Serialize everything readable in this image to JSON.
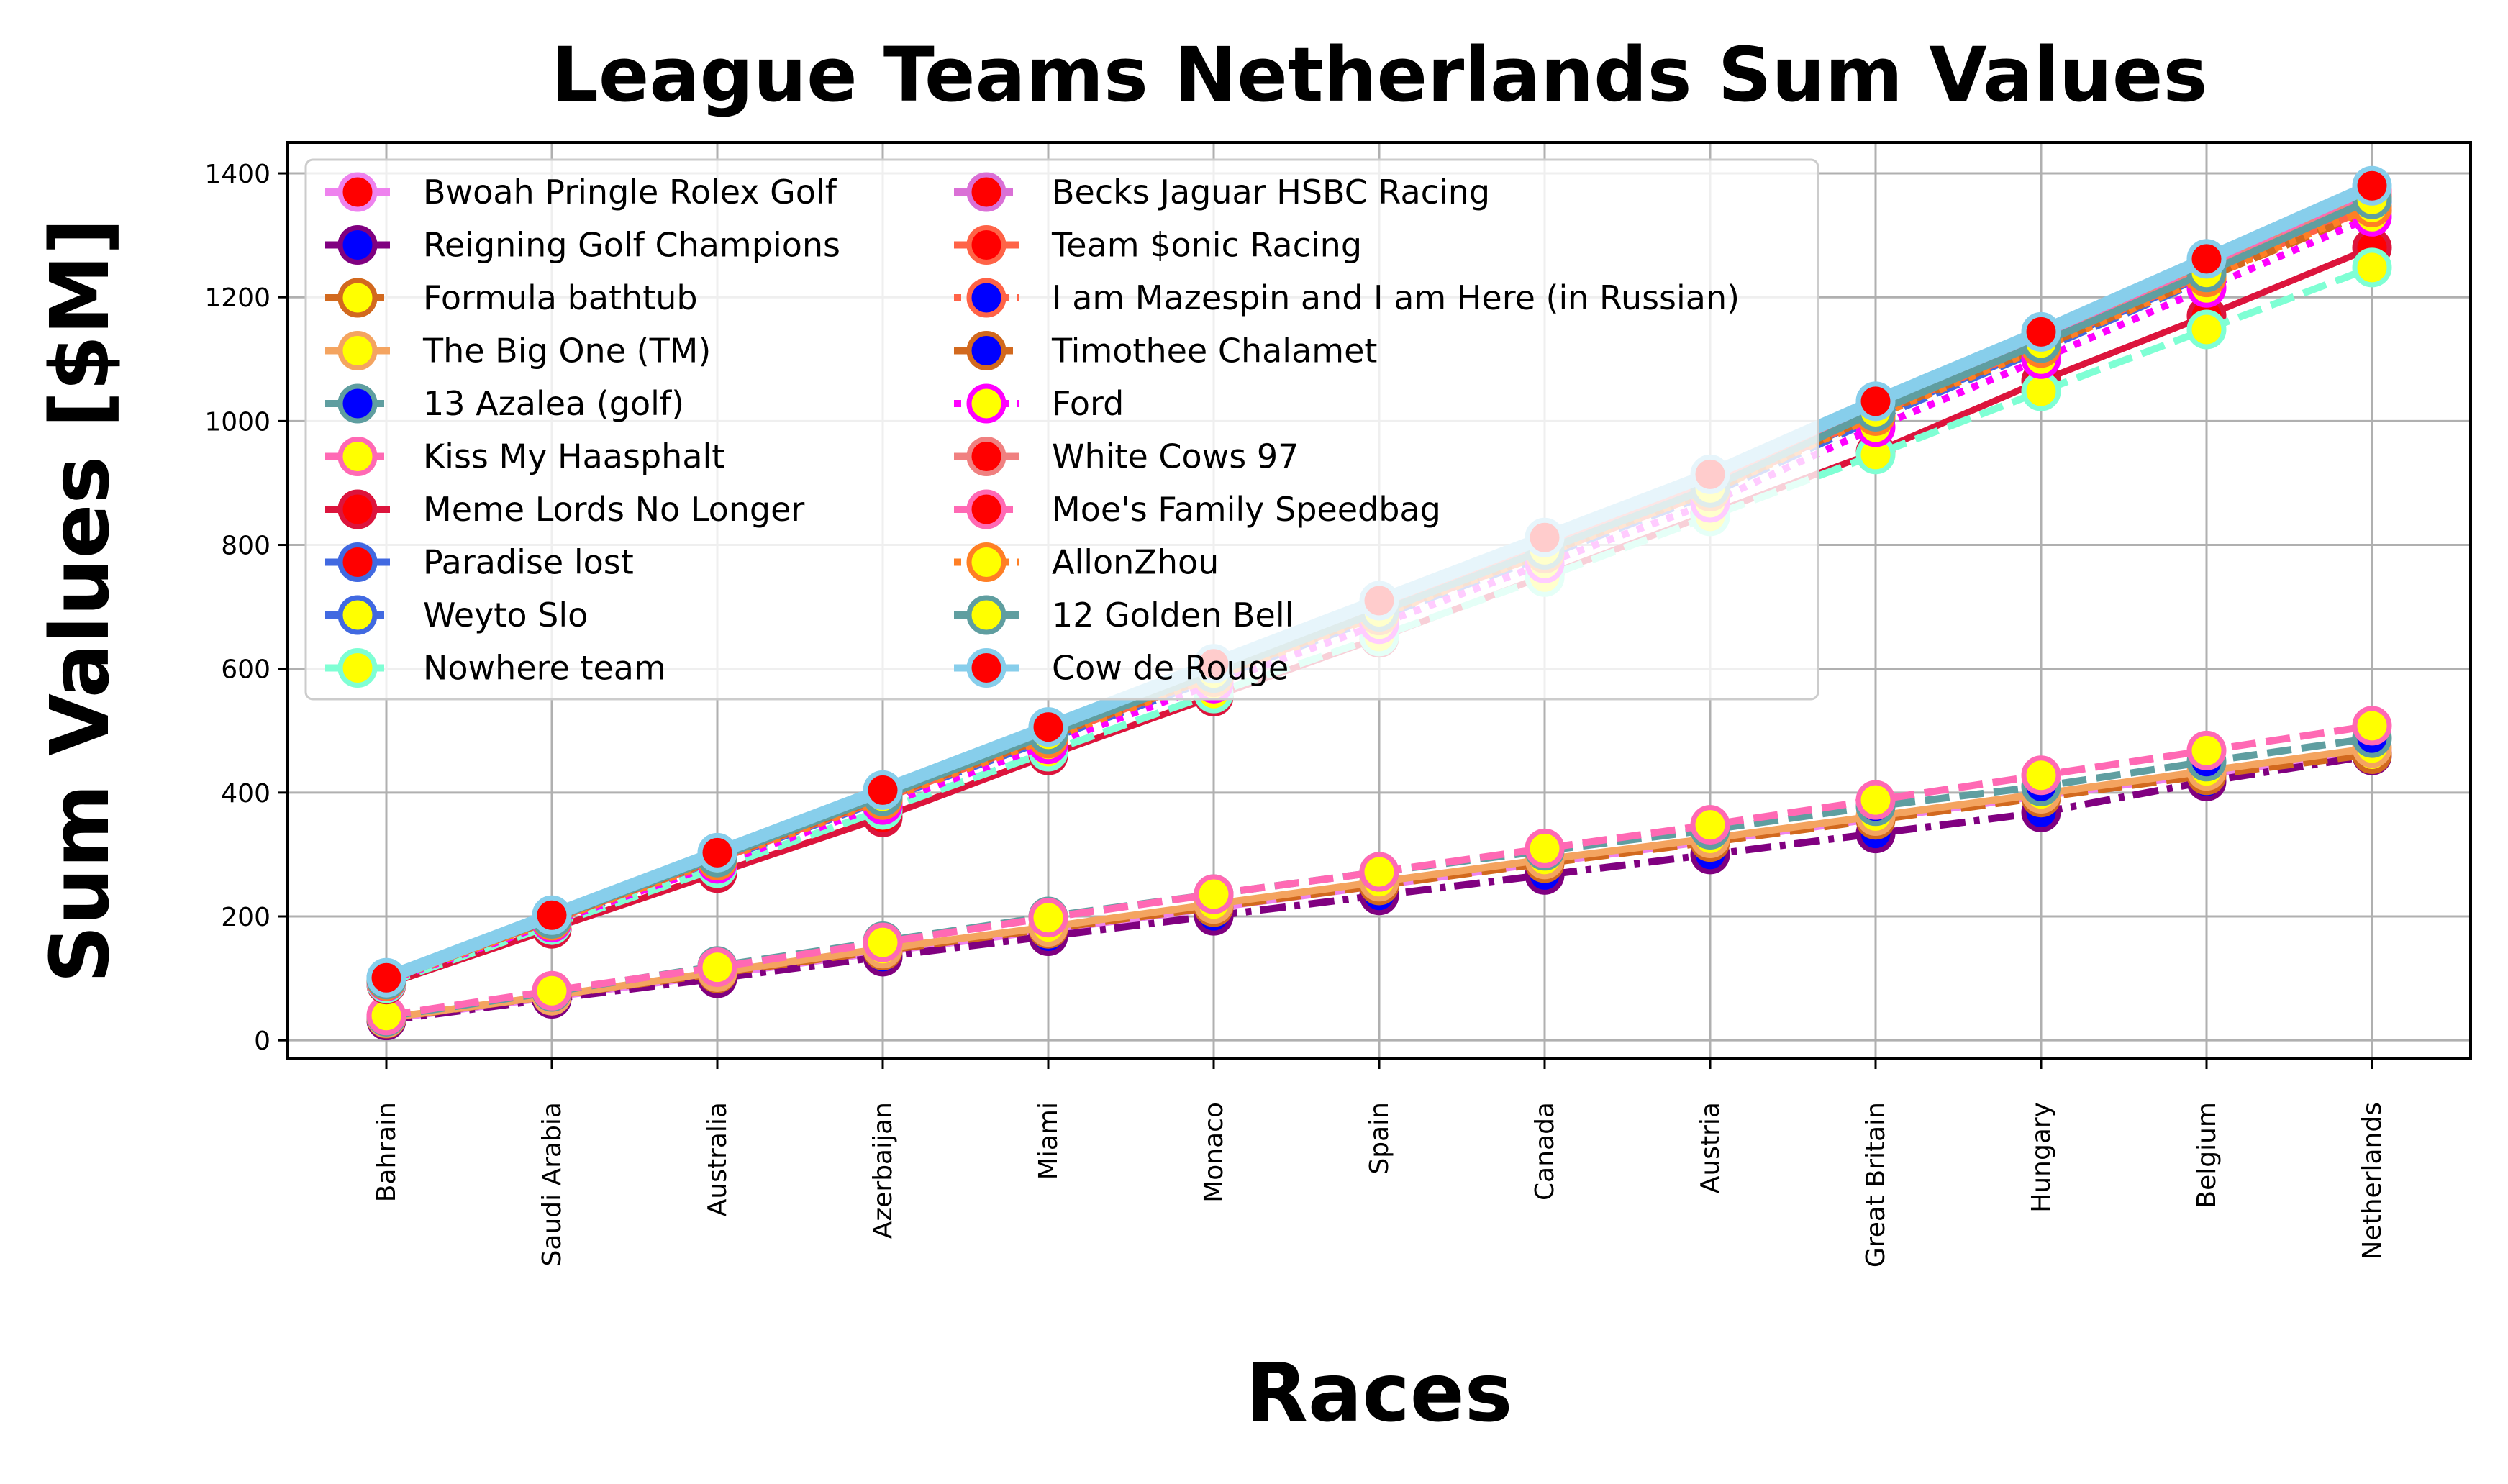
{
  "chart_data": {
    "type": "line",
    "title": "League Teams Netherlands Sum Values",
    "xlabel": "Races",
    "ylabel": "Sum Values [$M]",
    "categories": [
      "Bahrain",
      "Saudi Arabia",
      "Australia",
      "Azerbaijan",
      "Miami",
      "Monaco",
      "Spain",
      "Canada",
      "Austria",
      "Great Britain",
      "Hungary",
      "Belgium",
      "Netherlands"
    ],
    "ylim": [
      -30,
      1450
    ],
    "yticks": [
      0,
      200,
      400,
      600,
      800,
      1000,
      1200,
      1400
    ],
    "grid": true,
    "legend_position": "top-left",
    "series": [
      {
        "name": "Bwoah Pringle Rolex Golf",
        "line_color": "#ee82ee",
        "marker_color": "#ff0000",
        "dash": "solid",
        "values": [
          34,
          70,
          106,
          143,
          178,
          214,
          250,
          287,
          322,
          358,
          395,
          430,
          466
        ]
      },
      {
        "name": "Reigning Golf Champions",
        "line_color": "#800080",
        "marker_color": "#0000ff",
        "dash": "dashdot",
        "values": [
          32,
          67,
          100,
          135,
          168,
          201,
          234,
          267,
          300,
          334,
          368,
          418,
          460
        ]
      },
      {
        "name": "Formula bathtub",
        "line_color": "#d2691e",
        "marker_color": "#ffff00",
        "dash": "dashed",
        "values": [
          35,
          72,
          108,
          145,
          180,
          215,
          250,
          286,
          320,
          356,
          392,
          428,
          462
        ]
      },
      {
        "name": "The Big One (TM)",
        "line_color": "#f4a460",
        "marker_color": "#ffff00",
        "dash": "solid",
        "values": [
          36,
          72,
          110,
          148,
          183,
          220,
          256,
          292,
          326,
          362,
          398,
          435,
          472
        ]
      },
      {
        "name": "13 Azalea (golf)",
        "line_color": "#5f9ea0",
        "marker_color": "#0000ff",
        "dash": "dashed",
        "values": [
          38,
          78,
          120,
          160,
          200,
          236,
          272,
          306,
          340,
          378,
          410,
          450,
          488
        ]
      },
      {
        "name": "Kiss My Haasphalt",
        "line_color": "#ff69b4",
        "marker_color": "#ffff00",
        "dash": "dashed",
        "values": [
          40,
          80,
          118,
          158,
          198,
          236,
          272,
          310,
          348,
          388,
          428,
          468,
          508
        ]
      },
      {
        "name": "Meme Lords No Longer",
        "line_color": "#dc143c",
        "marker_color": "#ff0000",
        "dash": "solid",
        "values": [
          90,
          180,
          270,
          360,
          460,
          555,
          650,
          750,
          850,
          950,
          1065,
          1170,
          1280
        ]
      },
      {
        "name": "Paradise lost",
        "line_color": "#4169e1",
        "marker_color": "#ff0000",
        "dash": "solid",
        "values": [
          98,
          196,
          294,
          392,
          492,
          590,
          690,
          788,
          888,
          1010,
          1120,
          1236,
          1360
        ]
      },
      {
        "name": "Weyto Slo",
        "line_color": "#4169e1",
        "marker_color": "#ffff00",
        "dash": "dashed",
        "values": [
          96,
          192,
          290,
          388,
          486,
          584,
          684,
          782,
          882,
          1004,
          1115,
          1230,
          1355
        ]
      },
      {
        "name": "Nowhere team",
        "line_color": "#7fffd4",
        "marker_color": "#ffff00",
        "dash": "dashed",
        "values": [
          92,
          186,
          278,
          372,
          466,
          560,
          652,
          748,
          846,
          946,
          1048,
          1148,
          1248
        ]
      },
      {
        "name": "Becks Jaguar HSBC Racing",
        "line_color": "#da70d6",
        "marker_color": "#ff0000",
        "dash": "dashed",
        "values": [
          99,
          198,
          298,
          398,
          498,
          598,
          698,
          798,
          898,
          1020,
          1130,
          1245,
          1365
        ]
      },
      {
        "name": "Team $onic Racing",
        "line_color": "#ff6347",
        "marker_color": "#ff0000",
        "dash": "solid",
        "values": [
          97,
          194,
          292,
          390,
          490,
          588,
          688,
          786,
          886,
          1012,
          1124,
          1238,
          1345
        ]
      },
      {
        "name": "I am Mazespin and I am Here (in Russian)",
        "line_color": "#ff6347",
        "marker_color": "#0000ff",
        "dash": "dotted",
        "values": [
          98,
          197,
          296,
          395,
          494,
          594,
          693,
          792,
          892,
          1016,
          1126,
          1240,
          1362
        ]
      },
      {
        "name": "Timothee Chalamet",
        "line_color": "#d2691e",
        "marker_color": "#0000ff",
        "dash": "dashed",
        "values": [
          97,
          195,
          293,
          392,
          490,
          589,
          688,
          787,
          886,
          1010,
          1120,
          1232,
          1340
        ]
      },
      {
        "name": "Ford",
        "line_color": "#ff00ff",
        "marker_color": "#ffff00",
        "dash": "dotted",
        "values": [
          95,
          190,
          285,
          380,
          478,
          576,
          672,
          770,
          868,
          990,
          1100,
          1215,
          1330
        ]
      },
      {
        "name": "White Cows 97",
        "line_color": "#f08080",
        "marker_color": "#ff0000",
        "dash": "solid",
        "values": [
          99,
          199,
          299,
          399,
          500,
          600,
          700,
          800,
          900,
          1022,
          1135,
          1250,
          1370
        ]
      },
      {
        "name": "Moe's Family Speedbag",
        "line_color": "#ff69b4",
        "marker_color": "#ff0000",
        "dash": "dashed",
        "values": [
          100,
          200,
          300,
          400,
          502,
          604,
          706,
          808,
          910,
          1026,
          1138,
          1254,
          1372
        ]
      },
      {
        "name": "AllonZhou",
        "line_color": "#ff7f24",
        "marker_color": "#ffff00",
        "dash": "dotted",
        "values": [
          96,
          193,
          290,
          388,
          487,
          586,
          686,
          786,
          886,
          1008,
          1118,
          1232,
          1345
        ]
      },
      {
        "name": "12 Golden Bell",
        "line_color": "#5f9ea0",
        "marker_color": "#ffff00",
        "dash": "solid",
        "values": [
          98,
          196,
          295,
          394,
          494,
          593,
          692,
          792,
          892,
          1015,
          1126,
          1240,
          1358
        ]
      },
      {
        "name": "Cow de Rouge",
        "line_color": "#87ceeb",
        "marker_color": "#ff0000",
        "dash": "solid",
        "values": [
          101,
          202,
          303,
          404,
          506,
          608,
          710,
          812,
          914,
          1032,
          1144,
          1262,
          1380
        ]
      }
    ]
  }
}
